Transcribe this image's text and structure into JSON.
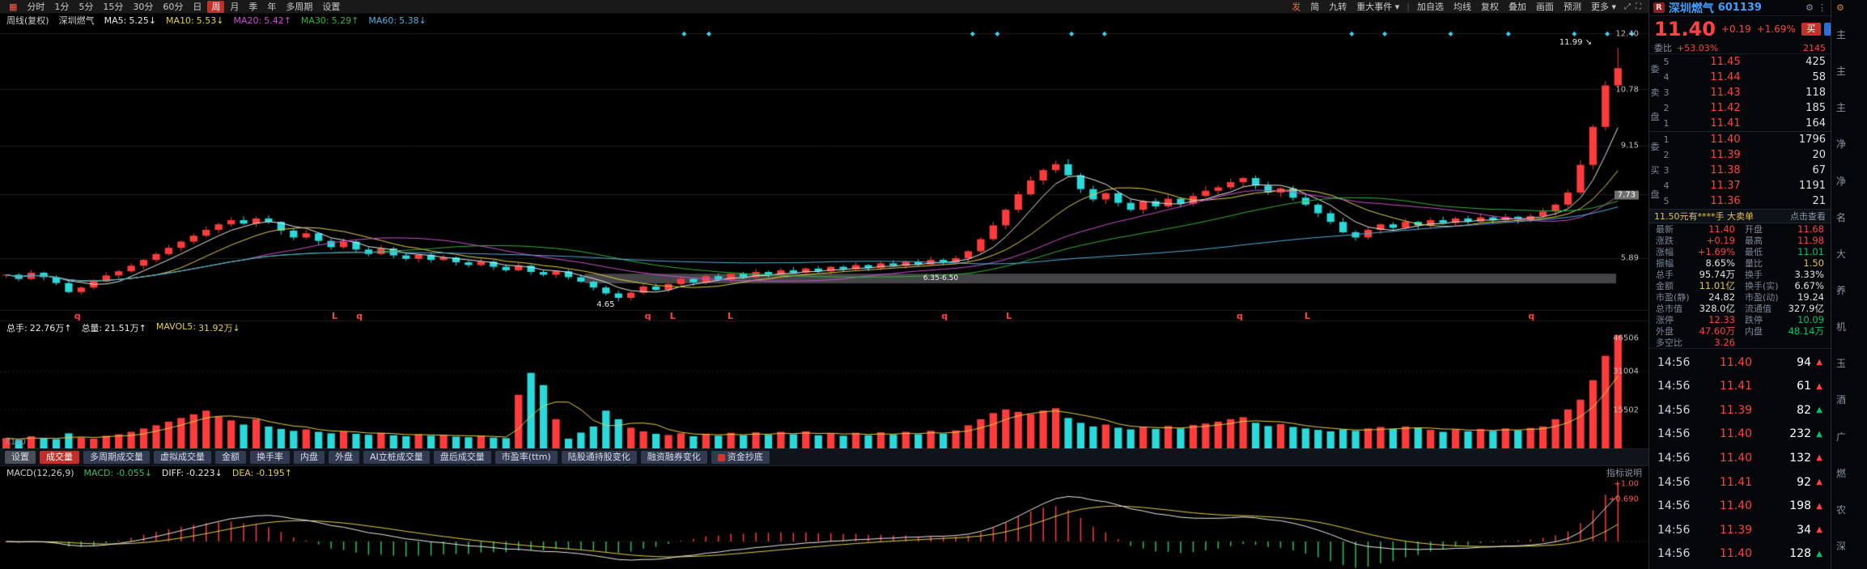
{
  "toolbar": {
    "grid_icon": "▦",
    "left_items": [
      {
        "label": "分时",
        "active": false
      },
      {
        "label": "1分",
        "active": false
      },
      {
        "label": "5分",
        "active": false
      },
      {
        "label": "15分",
        "active": false
      },
      {
        "label": "30分",
        "active": false
      },
      {
        "label": "60分",
        "active": false
      },
      {
        "label": "日",
        "active": false
      },
      {
        "label": "周",
        "active": true
      },
      {
        "label": "月",
        "active": false
      },
      {
        "label": "季",
        "active": false
      },
      {
        "label": "年",
        "active": false
      },
      {
        "label": "多周期",
        "active": false
      },
      {
        "label": "设置",
        "active": false
      }
    ],
    "right_items": [
      {
        "label": "发",
        "accent": true
      },
      {
        "label": "简",
        "accent": false
      },
      {
        "label": "九转",
        "accent": false
      },
      {
        "label": "重大事件 ▾",
        "accent": false
      },
      {
        "label": "|",
        "accent": false,
        "sep": true
      },
      {
        "label": "加自选",
        "accent": false
      },
      {
        "label": "均线",
        "accent": false
      },
      {
        "label": "复权",
        "accent": false
      },
      {
        "label": "叠加",
        "accent": false
      },
      {
        "label": "画面",
        "accent": false
      },
      {
        "label": "预测",
        "accent": false
      },
      {
        "label": "更多 ▾",
        "accent": false
      }
    ],
    "window_icons": [
      "⤢",
      "⛶"
    ]
  },
  "kline": {
    "header": {
      "period_label": "周线(复权)",
      "stock": "深圳燃气",
      "mas": [
        {
          "name": "MA5:",
          "value": "5.25↓",
          "color": "#e8e8e8"
        },
        {
          "name": "MA10:",
          "value": "5.53↓",
          "color": "#e3d04a"
        },
        {
          "name": "MA20:",
          "value": "5.42↑",
          "color": "#cf4fd4"
        },
        {
          "name": "MA30:",
          "value": "5.29↑",
          "color": "#36b336"
        },
        {
          "name": "MA60:",
          "value": "5.38↓",
          "color": "#52aede"
        }
      ]
    },
    "y_labels": [
      "12.40",
      "10.78",
      "9.15",
      "7.73",
      "5.89"
    ],
    "y_box": "7.73",
    "high_label": "11.99",
    "low_label": "4.65",
    "band_label": "6.35-6.50",
    "diamonds": [
      41.5,
      43,
      59,
      60.5,
      65,
      67,
      82,
      84,
      88,
      91.5,
      95.5,
      97.5,
      99
    ],
    "markers": [
      {
        "t": "q",
        "x": 4.7
      },
      {
        "t": "L",
        "x": 20.3
      },
      {
        "t": "q",
        "x": 21.8
      },
      {
        "t": "q",
        "x": 39.3
      },
      {
        "t": "L",
        "x": 40.8
      },
      {
        "t": "L",
        "x": 44.3
      },
      {
        "t": "q",
        "x": 57.3
      },
      {
        "t": "L",
        "x": 61.2
      },
      {
        "t": "q",
        "x": 75.2
      },
      {
        "t": "L",
        "x": 79.3
      },
      {
        "t": "q",
        "x": 92.9
      }
    ]
  },
  "volume": {
    "header": [
      {
        "label": "总手:",
        "value": "22.76万↑",
        "color": "#e8e8e8"
      },
      {
        "label": "总量:",
        "value": "21.51万↑",
        "color": "#e8e8e8"
      },
      {
        "label": "MAVOL5:",
        "value": "31.92万↓",
        "color": "#e3d04a"
      }
    ],
    "y_labels": [
      "46506",
      "31004",
      "15502"
    ],
    "unit": "X100"
  },
  "tabs": [
    {
      "label": "设置",
      "type": "gray"
    },
    {
      "label": "成交量",
      "type": "active"
    },
    {
      "label": "多周期成交量",
      "type": "normal"
    },
    {
      "label": "虚拟成交量",
      "type": "normal"
    },
    {
      "label": "金额",
      "type": "normal"
    },
    {
      "label": "换手率",
      "type": "normal"
    },
    {
      "label": "内盘",
      "type": "normal"
    },
    {
      "label": "外盘",
      "type": "normal"
    },
    {
      "label": "AI立桩成交量",
      "type": "normal"
    },
    {
      "label": "盘后成交量",
      "type": "normal"
    },
    {
      "label": "市盈率(ttm)",
      "type": "normal"
    },
    {
      "label": "陆股通持股变化",
      "type": "normal"
    },
    {
      "label": "融资融券变化",
      "type": "normal"
    },
    {
      "label": "资金抄底",
      "type": "normal",
      "icon": "红"
    }
  ],
  "macd": {
    "header_name": "MACD(12,26,9)",
    "values": [
      {
        "label": "MACD:",
        "value": "-0.055↓",
        "color": "#30c060"
      },
      {
        "label": "DIFF:",
        "value": "-0.223↓",
        "color": "#e8e8e8"
      },
      {
        "label": "DEA:",
        "value": "-0.195↑",
        "color": "#e3d04a"
      }
    ],
    "help_label": "指标说明",
    "y_labels": [
      {
        "text": "+1.00",
        "value": 1.0
      },
      {
        "text": "+0.690",
        "value": 0.69
      }
    ]
  },
  "chart_data": {
    "type": "candlestick",
    "symbol": "深圳燃气",
    "code": "601139",
    "period": "周线(复权)",
    "title": "深圳燃气 601139 周线",
    "price_axis_labels": [
      12.4,
      10.78,
      9.15,
      7.73,
      5.89
    ],
    "price_range": [
      4.4,
      12.6
    ],
    "ma_periods": [
      5,
      10,
      20,
      30,
      60
    ],
    "macd_params": [
      12,
      26,
      9
    ],
    "volume_axis_max": 46506,
    "annotations": {
      "spike_high": 11.99,
      "low_point": 4.65,
      "cost_band": "6.35-6.50"
    },
    "special": {
      "last_high": 11.99,
      "low_index": 49,
      "low_value": 4.65
    },
    "band": {
      "x0_pct": 36,
      "x1_pct": 99.5,
      "p_low": 5.17,
      "p_high": 5.45
    },
    "closes": [
      5.42,
      5.3,
      5.48,
      5.35,
      5.18,
      4.92,
      5.05,
      5.22,
      5.4,
      5.52,
      5.68,
      5.85,
      6.02,
      6.2,
      6.38,
      6.55,
      6.72,
      6.88,
      7.0,
      6.9,
      7.05,
      6.95,
      6.7,
      6.5,
      6.62,
      6.4,
      6.22,
      6.38,
      6.15,
      6.02,
      6.18,
      5.98,
      5.88,
      6.0,
      5.85,
      5.92,
      5.78,
      5.7,
      5.8,
      5.65,
      5.55,
      5.68,
      5.5,
      5.42,
      5.52,
      5.35,
      5.22,
      5.05,
      4.88,
      4.75,
      4.9,
      5.08,
      4.98,
      5.15,
      5.3,
      5.2,
      5.38,
      5.28,
      5.45,
      5.35,
      5.5,
      5.42,
      5.55,
      5.48,
      5.6,
      5.52,
      5.65,
      5.58,
      5.7,
      5.62,
      5.75,
      5.68,
      5.8,
      5.72,
      5.85,
      5.78,
      5.9,
      6.1,
      6.45,
      6.85,
      7.3,
      7.75,
      8.15,
      8.45,
      8.62,
      8.3,
      7.9,
      7.6,
      7.78,
      7.5,
      7.3,
      7.55,
      7.4,
      7.62,
      7.48,
      7.7,
      7.85,
      7.95,
      8.1,
      8.22,
      8.0,
      7.8,
      7.92,
      7.65,
      7.45,
      7.2,
      6.95,
      6.65,
      6.5,
      6.72,
      6.88,
      6.78,
      6.95,
      6.85,
      7.0,
      6.92,
      7.05,
      6.96,
      7.08,
      7.0,
      7.1,
      7.02,
      7.12,
      7.25,
      7.45,
      7.8,
      8.6,
      9.7,
      10.9,
      11.4
    ],
    "volumes": [
      4200,
      3500,
      5000,
      4000,
      3800,
      6200,
      4500,
      4000,
      5200,
      5800,
      6800,
      8200,
      9500,
      11000,
      12500,
      14000,
      15500,
      13000,
      11500,
      9800,
      12000,
      9000,
      8000,
      7200,
      7800,
      6800,
      6200,
      7000,
      6000,
      5600,
      6400,
      5400,
      5000,
      5800,
      5200,
      5600,
      4800,
      4600,
      5200,
      4400,
      4200,
      22000,
      31000,
      26000,
      12000,
      4000,
      6500,
      9000,
      15500,
      12000,
      8500,
      7000,
      6000,
      5500,
      6200,
      5000,
      6000,
      5200,
      6400,
      5400,
      6600,
      5600,
      6800,
      5800,
      7000,
      5400,
      6200,
      5200,
      6400,
      5400,
      6600,
      5600,
      6800,
      5800,
      7200,
      6000,
      7400,
      9500,
      12000,
      14500,
      16000,
      15000,
      14000,
      15500,
      16500,
      12500,
      10500,
      9000,
      9800,
      8500,
      7800,
      8800,
      8000,
      9200,
      8200,
      9600,
      10200,
      11000,
      12000,
      12800,
      10500,
      9200,
      10000,
      8800,
      8200,
      7600,
      7000,
      7800,
      7200,
      8200,
      8800,
      8000,
      9000,
      8400,
      7600,
      6800,
      7800,
      7000,
      8000,
      7200,
      8200,
      7400,
      8400,
      9000,
      12000,
      16000,
      20000,
      28000,
      38000,
      46506
    ]
  },
  "quote": {
    "badge": "R",
    "title": "深圳燃气",
    "code": "601139",
    "price": "11.40",
    "change": "+0.19",
    "pct": "+1.69%",
    "buy_btn": "买",
    "sell_btn": "卖",
    "weibi_label": "委比",
    "weibi": "+53.03%",
    "weicha": "2145",
    "sell_side_label": "委卖盘",
    "buy_side_label": "委买盘",
    "asks": [
      {
        "n": "5",
        "p": "11.45",
        "v": "425"
      },
      {
        "n": "4",
        "p": "11.44",
        "v": "58"
      },
      {
        "n": "3",
        "p": "11.43",
        "v": "118"
      },
      {
        "n": "2",
        "p": "11.42",
        "v": "185"
      },
      {
        "n": "1",
        "p": "11.41",
        "v": "164"
      }
    ],
    "bids": [
      {
        "n": "1",
        "p": "11.40",
        "v": "1796"
      },
      {
        "n": "2",
        "p": "11.39",
        "v": "20"
      },
      {
        "n": "3",
        "p": "11.38",
        "v": "67"
      },
      {
        "n": "4",
        "p": "11.37",
        "v": "1191"
      },
      {
        "n": "5",
        "p": "11.36",
        "v": "21"
      }
    ],
    "banner": {
      "text": "11.50元有****手 大卖单",
      "link": "点击查看"
    },
    "stats": [
      {
        "l": "最新",
        "v": "11.40",
        "c": "red"
      },
      {
        "l": "开盘",
        "v": "11.68",
        "c": "red"
      },
      {
        "l": "涨跌",
        "v": "+0.19",
        "c": "red"
      },
      {
        "l": "最高",
        "v": "11.98",
        "c": "red"
      },
      {
        "l": "涨幅",
        "v": "+1.69%",
        "c": "red"
      },
      {
        "l": "最低",
        "v": "11.01",
        "c": "green"
      },
      {
        "l": "振幅",
        "v": "8.65%",
        "c": "white"
      },
      {
        "l": "量比",
        "v": "1.50",
        "c": "yellow"
      },
      {
        "l": "总手",
        "v": "95.74万",
        "c": "white"
      },
      {
        "l": "换手",
        "v": "3.33%",
        "c": "white"
      },
      {
        "l": "金额",
        "v": "11.01亿",
        "c": "yellow"
      },
      {
        "l": "换手(实)",
        "v": "6.67%",
        "c": "white"
      },
      {
        "l": "市盈(静)",
        "v": "24.82",
        "c": "white"
      },
      {
        "l": "市盈(动)",
        "v": "19.24",
        "c": "white"
      },
      {
        "l": "总市值",
        "v": "328.0亿",
        "c": "white"
      },
      {
        "l": "流通值",
        "v": "327.9亿",
        "c": "white"
      },
      {
        "l": "涨停",
        "v": "12.33",
        "c": "red"
      },
      {
        "l": "跌停",
        "v": "10.09",
        "c": "green"
      },
      {
        "l": "外盘",
        "v": "47.60万",
        "c": "red"
      },
      {
        "l": "内盘",
        "v": "48.14万",
        "c": "green"
      },
      {
        "l": "多空比",
        "v": "3.26",
        "c": "red"
      },
      {
        "l": "",
        "v": "",
        "c": "white"
      }
    ],
    "trades": [
      {
        "t": "14:56",
        "p": "11.40",
        "v": "94",
        "arrow": "▲",
        "ac": "red"
      },
      {
        "t": "14:56",
        "p": "11.41",
        "v": "61",
        "arrow": "▲",
        "ac": "red"
      },
      {
        "t": "14:56",
        "p": "11.39",
        "v": "82",
        "arrow": "▲",
        "ac": "green"
      },
      {
        "t": "14:56",
        "p": "11.40",
        "v": "232",
        "arrow": "▲",
        "ac": "green"
      },
      {
        "t": "14:56",
        "p": "11.40",
        "v": "132",
        "arrow": "▲",
        "ac": "red"
      },
      {
        "t": "14:56",
        "p": "11.41",
        "v": "92",
        "arrow": "▲",
        "ac": "red"
      },
      {
        "t": "14:56",
        "p": "11.40",
        "v": "198",
        "arrow": "▲",
        "ac": "red"
      },
      {
        "t": "14:56",
        "p": "11.39",
        "v": "34",
        "arrow": "▲",
        "ac": "red"
      },
      {
        "t": "14:56",
        "p": "11.40",
        "v": "128",
        "arrow": "▲",
        "ac": "green"
      }
    ]
  },
  "clip_strip": {
    "gear": "⚙",
    "chars": [
      "主",
      "主",
      "主",
      "净",
      "净",
      "名",
      "大",
      "养",
      "机",
      "玉",
      "酒",
      "广",
      "燃",
      "农",
      "深"
    ]
  }
}
